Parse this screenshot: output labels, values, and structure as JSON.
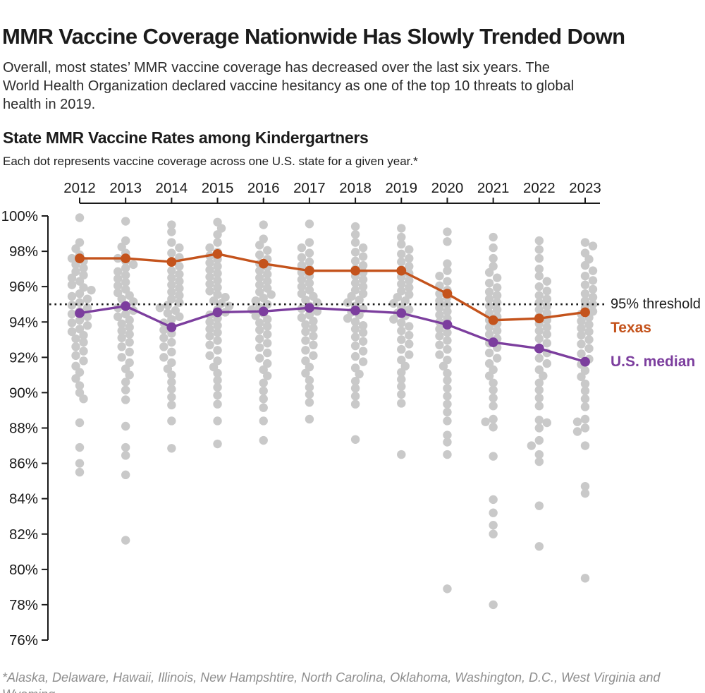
{
  "header": {
    "title": "MMR Vaccine Coverage Nationwide Has Slowly Trended Down",
    "subtitle": "Overall, most states’ MMR vaccine coverage has decreased over the last six years. The\nWorld Health Organization declared vaccine hesitancy as one of the top 10 threats to global\nhealth in 2019."
  },
  "chart_header": {
    "title": "State MMR Vaccine Rates among Kindergartners",
    "caption": "Each dot represents vaccine coverage across one U.S. state for a given year.*"
  },
  "annotations": {
    "threshold_label": "95% threshold",
    "texas_label": "Texas",
    "median_label": "U.S. median"
  },
  "footnote": {
    "text": "*Alaska, Delaware, Hawaii, Illinois, New Hampshtire, North Carolina, Oklahoma, Washington, D.C., West Virginia and Wyoming\nonly reported data for select years."
  },
  "colors": {
    "texas": "#c4531c",
    "median": "#7c3e9e",
    "state_dot": "#c9c9c9",
    "axis": "#1a1a1a",
    "threshold": "#1a1a1a",
    "footnote": "#8e8e8e"
  },
  "chart_data": {
    "type": "scatter",
    "title": "State MMR Vaccine Rates among Kindergartners",
    "x_axis_position": "top",
    "years": [
      2012,
      2013,
      2014,
      2015,
      2016,
      2017,
      2018,
      2019,
      2020,
      2021,
      2022,
      2023
    ],
    "y_axis": {
      "min": 76,
      "max": 100,
      "step": 2,
      "format": "percent"
    },
    "threshold": 95,
    "grid": false,
    "series": [
      {
        "name": "Texas",
        "values": [
          97.6,
          97.6,
          97.4,
          97.85,
          97.3,
          96.9,
          96.9,
          96.9,
          95.6,
          94.1,
          94.2,
          94.55
        ]
      },
      {
        "name": "U.S. median",
        "values": [
          94.5,
          94.9,
          93.7,
          94.55,
          94.6,
          94.8,
          94.65,
          94.5,
          93.85,
          92.85,
          92.5,
          91.75
        ]
      }
    ],
    "state_dots": {
      "2012": [
        99.9,
        98.5,
        98.15,
        97.8,
        97.6,
        97.45,
        97.25,
        97.05,
        96.85,
        96.65,
        96.5,
        96.3,
        96.1,
        95.95,
        95.8,
        95.6,
        95.45,
        95.3,
        95.1,
        94.95,
        94.8,
        94.6,
        94.45,
        94.3,
        94.1,
        93.95,
        93.8,
        93.6,
        93.45,
        93.25,
        93.05,
        92.85,
        92.6,
        92.35,
        92.1,
        91.8,
        91.5,
        91.15,
        90.8,
        90.4,
        90.0,
        89.65,
        88.3,
        86.9,
        86.0,
        85.5
      ],
      "2013": [
        99.7,
        98.6,
        98.25,
        97.9,
        97.6,
        97.45,
        97.25,
        97.05,
        96.85,
        96.65,
        96.45,
        96.25,
        96.05,
        95.85,
        95.65,
        95.5,
        95.3,
        95.15,
        94.95,
        94.8,
        94.65,
        94.45,
        94.3,
        94.1,
        93.9,
        93.7,
        93.5,
        93.3,
        93.1,
        92.85,
        92.6,
        92.3,
        92.0,
        91.7,
        91.35,
        91.0,
        90.6,
        90.15,
        89.6,
        88.1,
        86.9,
        86.45,
        85.35,
        81.65
      ],
      "2014": [
        99.5,
        99.1,
        98.5,
        98.2,
        97.9,
        97.65,
        97.4,
        97.15,
        96.9,
        96.7,
        96.5,
        96.3,
        96.1,
        95.9,
        95.7,
        95.5,
        95.3,
        95.1,
        94.95,
        94.8,
        94.65,
        94.5,
        94.3,
        94.15,
        93.95,
        93.75,
        93.55,
        93.35,
        93.1,
        92.85,
        92.6,
        92.3,
        92.0,
        91.7,
        91.35,
        91.0,
        90.6,
        90.2,
        89.75,
        89.3,
        88.4,
        86.85
      ],
      "2015": [
        99.65,
        99.3,
        98.95,
        98.5,
        98.2,
        97.95,
        97.75,
        97.55,
        97.35,
        97.15,
        96.95,
        96.75,
        96.55,
        96.35,
        96.15,
        95.95,
        95.75,
        95.55,
        95.4,
        95.2,
        95.05,
        94.9,
        94.7,
        94.55,
        94.4,
        94.2,
        94.0,
        93.8,
        93.6,
        93.4,
        93.2,
        92.95,
        92.7,
        92.4,
        92.1,
        91.8,
        91.45,
        91.1,
        90.7,
        90.3,
        89.85,
        89.35,
        88.4,
        87.1
      ],
      "2016": [
        99.5,
        98.7,
        98.35,
        98.05,
        97.8,
        97.55,
        97.3,
        97.1,
        96.9,
        96.7,
        96.5,
        96.3,
        96.1,
        95.9,
        95.7,
        95.55,
        95.35,
        95.2,
        95.0,
        94.85,
        94.7,
        94.5,
        94.35,
        94.15,
        93.95,
        93.75,
        93.55,
        93.3,
        93.05,
        92.8,
        92.55,
        92.25,
        91.95,
        91.65,
        91.3,
        90.95,
        90.55,
        90.1,
        89.65,
        89.15,
        88.4,
        87.3
      ],
      "2017": [
        99.55,
        98.5,
        98.2,
        97.9,
        97.65,
        97.4,
        97.2,
        97.0,
        96.8,
        96.6,
        96.4,
        96.2,
        96.0,
        95.8,
        95.6,
        95.45,
        95.25,
        95.1,
        94.9,
        94.75,
        94.6,
        94.4,
        94.25,
        94.05,
        93.85,
        93.65,
        93.45,
        93.2,
        92.95,
        92.7,
        92.4,
        92.1,
        91.8,
        91.45,
        91.1,
        90.7,
        90.3,
        89.9,
        89.45,
        88.5
      ],
      "2018": [
        99.4,
        98.95,
        98.5,
        98.2,
        97.95,
        97.7,
        97.45,
        97.2,
        97.0,
        96.8,
        96.6,
        96.4,
        96.2,
        96.0,
        95.8,
        95.6,
        95.45,
        95.25,
        95.1,
        94.9,
        94.75,
        94.55,
        94.4,
        94.2,
        94.0,
        93.8,
        93.6,
        93.4,
        93.15,
        92.9,
        92.65,
        92.35,
        92.05,
        91.75,
        91.4,
        91.05,
        90.65,
        90.25,
        89.8,
        89.35,
        87.35
      ],
      "2019": [
        99.3,
        98.8,
        98.4,
        98.1,
        97.85,
        97.6,
        97.4,
        97.15,
        96.95,
        96.75,
        96.55,
        96.35,
        96.15,
        95.95,
        95.75,
        95.55,
        95.4,
        95.2,
        95.05,
        94.85,
        94.7,
        94.5,
        94.35,
        94.15,
        93.95,
        93.75,
        93.5,
        93.25,
        93.0,
        92.75,
        92.45,
        92.15,
        91.85,
        91.5,
        91.15,
        90.75,
        90.35,
        89.9,
        89.4,
        86.5
      ],
      "2020": [
        99.1,
        98.55,
        97.3,
        96.9,
        96.6,
        96.3,
        96.05,
        95.8,
        95.6,
        95.4,
        95.2,
        95.0,
        94.8,
        94.6,
        94.4,
        94.2,
        94.0,
        93.8,
        93.6,
        93.4,
        93.2,
        92.95,
        92.7,
        92.45,
        92.15,
        91.85,
        91.5,
        91.1,
        90.7,
        90.25,
        89.8,
        89.35,
        88.9,
        88.4,
        87.6,
        87.2,
        86.5,
        78.9
      ],
      "2021": [
        98.8,
        98.2,
        97.6,
        97.15,
        96.8,
        96.5,
        96.2,
        95.95,
        95.7,
        95.5,
        95.3,
        95.1,
        94.9,
        94.7,
        94.5,
        94.3,
        94.1,
        93.9,
        93.7,
        93.5,
        93.3,
        93.05,
        92.8,
        92.55,
        92.25,
        91.95,
        91.65,
        91.3,
        90.95,
        90.55,
        90.15,
        89.7,
        89.25,
        88.5,
        88.35,
        88.05,
        86.4,
        83.95,
        83.2,
        82.5,
        82.0,
        78.0
      ],
      "2022": [
        98.6,
        98.1,
        97.6,
        97.0,
        96.6,
        96.3,
        96.0,
        95.75,
        95.5,
        95.3,
        95.1,
        94.9,
        94.7,
        94.5,
        94.3,
        94.1,
        93.9,
        93.7,
        93.5,
        93.3,
        93.05,
        92.8,
        92.55,
        92.25,
        91.95,
        91.65,
        91.3,
        90.95,
        90.55,
        90.15,
        89.7,
        89.25,
        88.45,
        88.3,
        88.0,
        87.3,
        87.0,
        86.5,
        86.1,
        83.6,
        81.3
      ],
      "2023": [
        98.5,
        98.3,
        97.9,
        97.55,
        97.2,
        96.9,
        96.6,
        96.35,
        96.1,
        95.85,
        95.6,
        95.4,
        95.2,
        95.0,
        94.8,
        94.6,
        94.45,
        94.25,
        94.05,
        93.85,
        93.65,
        93.45,
        93.25,
        93.0,
        92.75,
        92.5,
        92.2,
        91.9,
        91.6,
        91.25,
        90.9,
        90.5,
        90.1,
        89.65,
        89.2,
        88.5,
        88.35,
        88.0,
        87.8,
        87.0,
        84.7,
        84.3,
        79.5
      ]
    }
  }
}
